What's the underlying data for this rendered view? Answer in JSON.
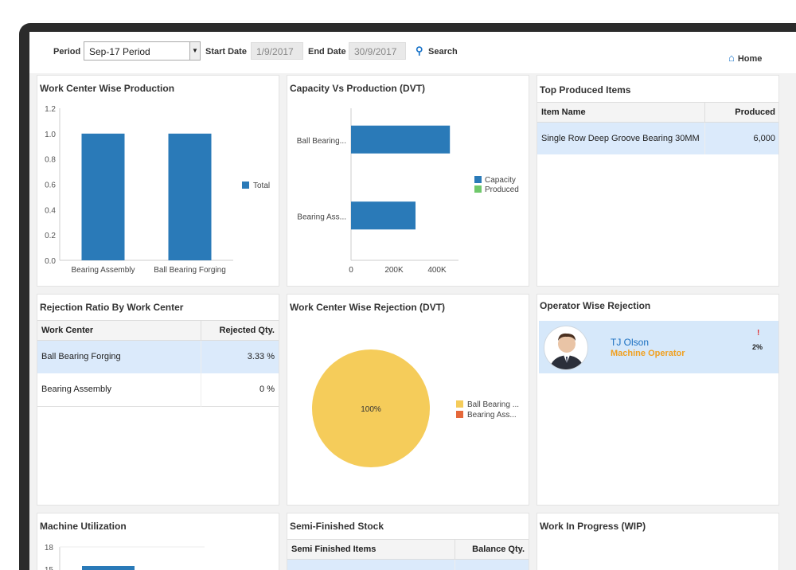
{
  "toolbar": {
    "period_label": "Period",
    "period_value": "Sep-17 Period",
    "start_label": "Start Date",
    "start_value": "1/9/2017",
    "end_label": "End Date",
    "end_value": "30/9/2017",
    "search_label": "Search",
    "home_label": "Home"
  },
  "panels": {
    "wc_production": {
      "title": "Work Center Wise Production"
    },
    "capacity": {
      "title": "Capacity Vs Production (DVT)"
    },
    "top_items": {
      "title": "Top Produced Items",
      "headers": [
        "Item Name",
        "Produced"
      ],
      "rows": [
        [
          "Single Row Deep Groove Bearing 30MM",
          "6,000"
        ]
      ]
    },
    "rejection_ratio": {
      "title": "Rejection Ratio By Work Center",
      "headers": [
        "Work Center",
        "Rejected Qty."
      ],
      "rows": [
        [
          "Ball Bearing Forging",
          "3.33 %"
        ],
        [
          "Bearing Assembly",
          "0 %"
        ]
      ]
    },
    "wc_rejection": {
      "title": "Work Center Wise Rejection (DVT)"
    },
    "operator_rejection": {
      "title": "Operator Wise Rejection",
      "name": "TJ Olson",
      "role": "Machine Operator",
      "flag": "!",
      "percent": "2%"
    },
    "machine_util": {
      "title": "Machine Utilization"
    },
    "semi_finished": {
      "title": "Semi-Finished Stock",
      "headers": [
        "Semi Finished Items",
        "Balance Qty."
      ]
    },
    "wip": {
      "title": "Work In Progress (WIP)"
    }
  },
  "chart_data": [
    {
      "type": "bar",
      "categories": [
        "Bearing Assembly",
        "Ball Bearing Forging"
      ],
      "series": [
        {
          "name": "Total",
          "values": [
            1.0,
            1.0
          ]
        }
      ],
      "ylim": [
        0,
        1.2
      ],
      "yticks": [
        "0.0",
        "0.2",
        "0.4",
        "0.6",
        "0.8",
        "1.0",
        "1.2"
      ],
      "legend": "right",
      "color": "#2a7ab8"
    },
    {
      "type": "bar",
      "orientation": "horizontal",
      "categories": [
        "Ball Bearing...",
        "Bearing Ass..."
      ],
      "series": [
        {
          "name": "Capacity",
          "values": [
            460000,
            300000
          ]
        },
        {
          "name": "Produced",
          "values": [
            0,
            0
          ]
        }
      ],
      "xlim": [
        0,
        500000
      ],
      "xticks": [
        "0",
        "200K",
        "400K"
      ],
      "colors": [
        "#2a7ab8",
        "#6fc86b"
      ],
      "legend": "right"
    },
    {
      "type": "pie",
      "slices": [
        {
          "label": "Ball Bearing ...",
          "value": 100,
          "color": "#f5cc5a"
        },
        {
          "label": "Bearing Ass...",
          "value": 0,
          "color": "#e5683a"
        }
      ],
      "slice_label": "100%",
      "legend": "right"
    },
    {
      "type": "bar",
      "yticks": [
        "18",
        "15"
      ],
      "color": "#2a7ab8"
    }
  ]
}
